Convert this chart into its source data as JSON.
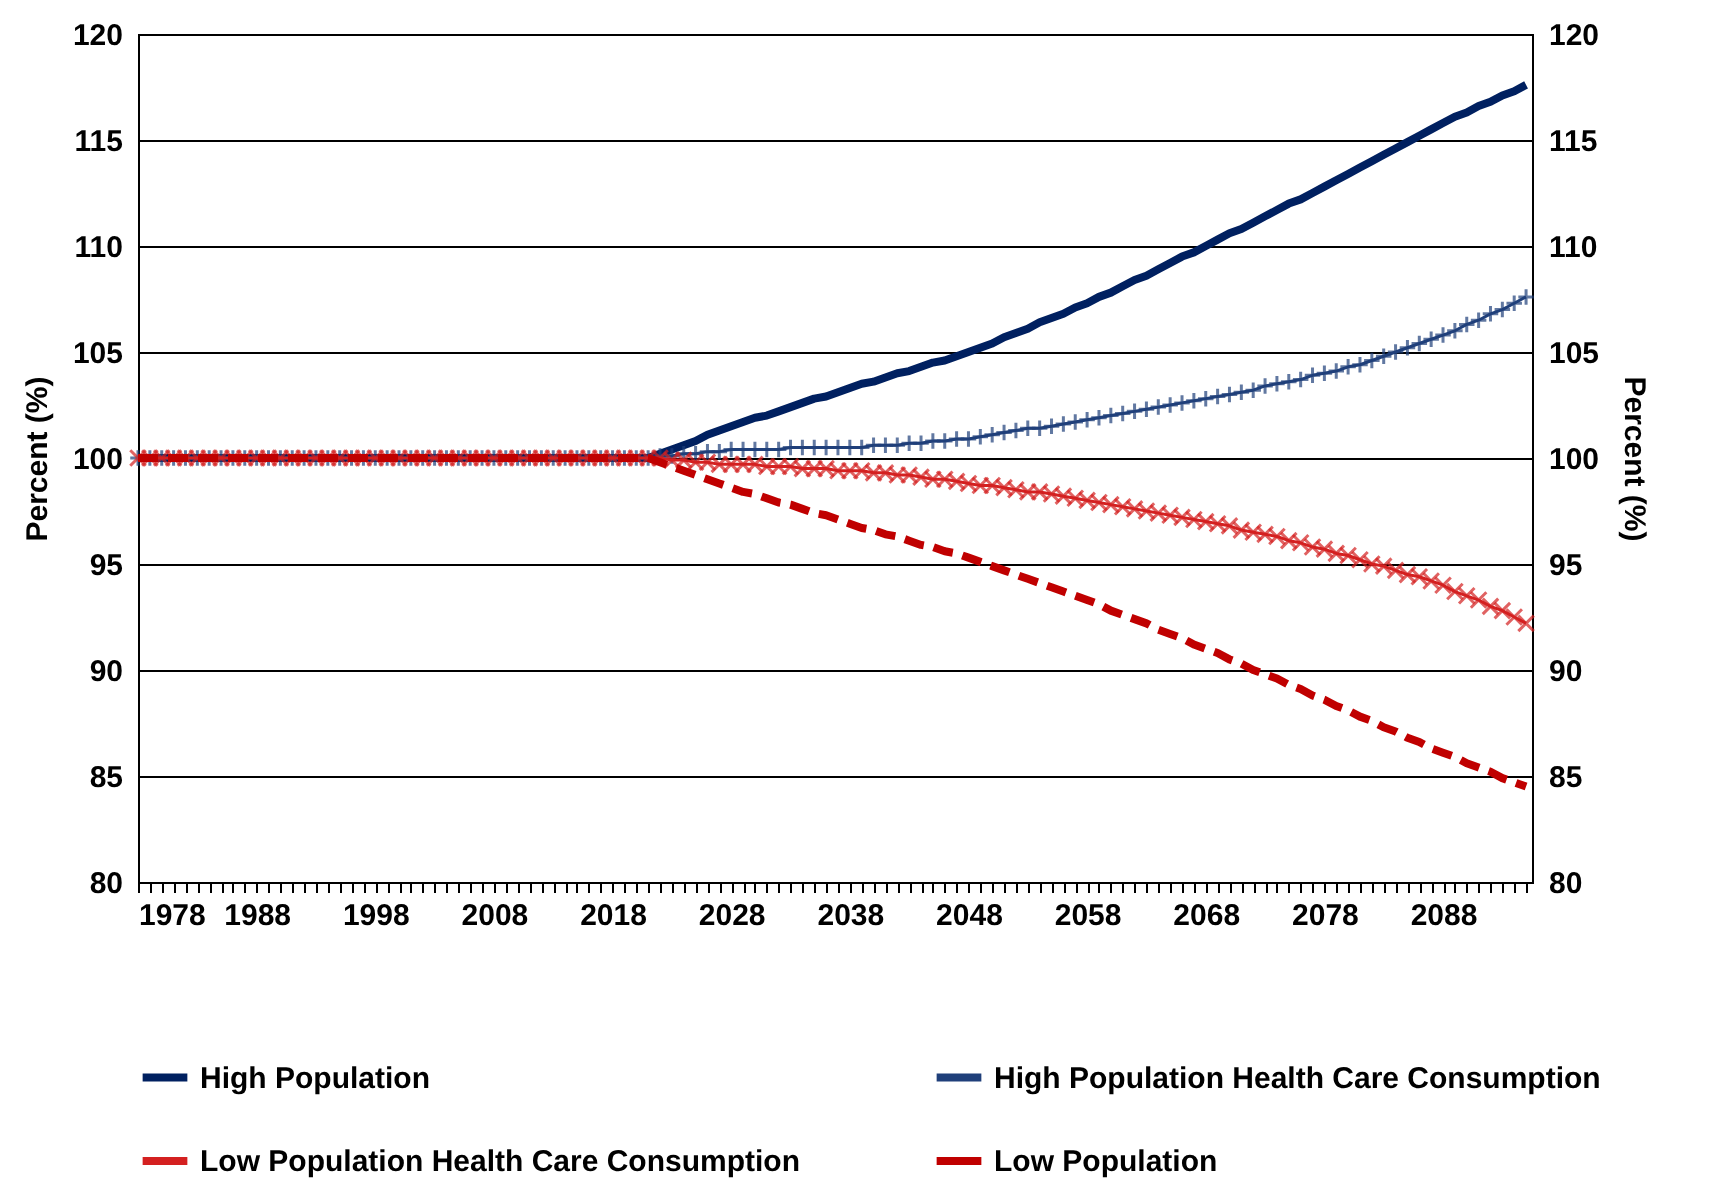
{
  "chart_data": {
    "type": "line",
    "ylabel": "Percent (%)",
    "y2label": "Percent (%)",
    "x": [
      1978,
      1979,
      1980,
      1981,
      1982,
      1983,
      1984,
      1985,
      1986,
      1987,
      1988,
      1989,
      1990,
      1991,
      1992,
      1993,
      1994,
      1995,
      1996,
      1997,
      1998,
      1999,
      2000,
      2001,
      2002,
      2003,
      2004,
      2005,
      2006,
      2007,
      2008,
      2009,
      2010,
      2011,
      2012,
      2013,
      2014,
      2015,
      2016,
      2017,
      2018,
      2019,
      2020,
      2021,
      2022,
      2023,
      2024,
      2025,
      2026,
      2027,
      2028,
      2029,
      2030,
      2031,
      2032,
      2033,
      2034,
      2035,
      2036,
      2037,
      2038,
      2039,
      2040,
      2041,
      2042,
      2043,
      2044,
      2045,
      2046,
      2047,
      2048,
      2049,
      2050,
      2051,
      2052,
      2053,
      2054,
      2055,
      2056,
      2057,
      2058,
      2059,
      2060,
      2061,
      2062,
      2063,
      2064,
      2065,
      2066,
      2067,
      2068,
      2069,
      2070,
      2071,
      2072,
      2073,
      2074,
      2075,
      2076,
      2077,
      2078,
      2079,
      2080,
      2081,
      2082,
      2083,
      2084,
      2085,
      2086,
      2087,
      2088,
      2089,
      2090,
      2091,
      2092,
      2093,
      2094,
      2095
    ],
    "series": [
      {
        "name": "High Population",
        "color": "#002060",
        "marker": "none",
        "line_style": "solid",
        "values": [
          100,
          100,
          100,
          100,
          100,
          100,
          100,
          100,
          100,
          100,
          100,
          100,
          100,
          100,
          100,
          100,
          100,
          100,
          100,
          100,
          100,
          100,
          100,
          100,
          100,
          100,
          100,
          100,
          100,
          100,
          100,
          100,
          100,
          100,
          100,
          100,
          100,
          100,
          100,
          100,
          100,
          100,
          100,
          100,
          100.2,
          100.4,
          100.6,
          100.8,
          101.1,
          101.3,
          101.5,
          101.7,
          101.9,
          102.0,
          102.2,
          102.4,
          102.6,
          102.8,
          102.9,
          103.1,
          103.3,
          103.5,
          103.6,
          103.8,
          104.0,
          104.1,
          104.3,
          104.5,
          104.6,
          104.8,
          105.0,
          105.2,
          105.4,
          105.7,
          105.9,
          106.1,
          106.4,
          106.6,
          106.8,
          107.1,
          107.3,
          107.6,
          107.8,
          108.1,
          108.4,
          108.6,
          108.9,
          109.2,
          109.5,
          109.7,
          110.0,
          110.3,
          110.6,
          110.8,
          111.1,
          111.4,
          111.7,
          112.0,
          112.2,
          112.5,
          112.8,
          113.1,
          113.4,
          113.7,
          114.0,
          114.3,
          114.6,
          114.9,
          115.2,
          115.5,
          115.8,
          116.1,
          116.3,
          116.6,
          116.8,
          117.1,
          117.3,
          117.6
        ]
      },
      {
        "name": "High Population Health Care Consumption",
        "color": "#1f3f7a",
        "marker": "cross",
        "line_style": "solid",
        "values": [
          100,
          100,
          100,
          100,
          100,
          100,
          100,
          100,
          100,
          100,
          100,
          100,
          100,
          100,
          100,
          100,
          100,
          100,
          100,
          100,
          100,
          100,
          100,
          100,
          100,
          100,
          100,
          100,
          100,
          100,
          100,
          100,
          100,
          100,
          100,
          100,
          100,
          100,
          100,
          100,
          100,
          100,
          100,
          100,
          100.1,
          100.1,
          100.2,
          100.2,
          100.3,
          100.3,
          100.4,
          100.4,
          100.4,
          100.4,
          100.4,
          100.5,
          100.5,
          100.5,
          100.5,
          100.5,
          100.5,
          100.5,
          100.6,
          100.6,
          100.6,
          100.7,
          100.7,
          100.8,
          100.8,
          100.9,
          100.9,
          101.0,
          101.1,
          101.2,
          101.3,
          101.4,
          101.4,
          101.5,
          101.6,
          101.7,
          101.8,
          101.9,
          102.0,
          102.1,
          102.2,
          102.3,
          102.4,
          102.5,
          102.6,
          102.7,
          102.8,
          102.9,
          103.0,
          103.1,
          103.2,
          103.4,
          103.5,
          103.6,
          103.7,
          103.9,
          104.0,
          104.1,
          104.3,
          104.4,
          104.6,
          104.8,
          105.0,
          105.2,
          105.4,
          105.6,
          105.8,
          106.0,
          106.3,
          106.5,
          106.8,
          107.0,
          107.3,
          107.6
        ]
      },
      {
        "name": "Low Population Health Care Consumption",
        "color": "#d42020",
        "marker": "x",
        "line_style": "solid",
        "values": [
          100,
          100,
          100,
          100,
          100,
          100,
          100,
          100,
          100,
          100,
          100,
          100,
          100,
          100,
          100,
          100,
          100,
          100,
          100,
          100,
          100,
          100,
          100,
          100,
          100,
          100,
          100,
          100,
          100,
          100,
          100,
          100,
          100,
          100,
          100,
          100,
          100,
          100,
          100,
          100,
          100,
          100,
          100,
          100,
          100.0,
          99.9,
          99.9,
          99.8,
          99.8,
          99.7,
          99.7,
          99.7,
          99.7,
          99.6,
          99.6,
          99.6,
          99.5,
          99.5,
          99.5,
          99.4,
          99.4,
          99.4,
          99.3,
          99.3,
          99.2,
          99.2,
          99.1,
          99.0,
          99.0,
          98.9,
          98.8,
          98.7,
          98.7,
          98.6,
          98.5,
          98.4,
          98.4,
          98.3,
          98.2,
          98.1,
          98.0,
          97.9,
          97.8,
          97.7,
          97.6,
          97.5,
          97.4,
          97.3,
          97.2,
          97.1,
          97.0,
          96.9,
          96.8,
          96.6,
          96.5,
          96.4,
          96.3,
          96.1,
          96.0,
          95.8,
          95.7,
          95.5,
          95.4,
          95.2,
          95.0,
          94.9,
          94.7,
          94.5,
          94.4,
          94.2,
          94.0,
          93.7,
          93.5,
          93.3,
          93.0,
          92.8,
          92.5,
          92.2
        ]
      },
      {
        "name": "Low Population",
        "color": "#c00000",
        "marker": "none",
        "line_style": "dashed",
        "values": [
          100,
          100,
          100,
          100,
          100,
          100,
          100,
          100,
          100,
          100,
          100,
          100,
          100,
          100,
          100,
          100,
          100,
          100,
          100,
          100,
          100,
          100,
          100,
          100,
          100,
          100,
          100,
          100,
          100,
          100,
          100,
          100,
          100,
          100,
          100,
          100,
          100,
          100,
          100,
          100,
          100,
          100,
          100,
          100,
          99.8,
          99.6,
          99.4,
          99.2,
          99.0,
          98.8,
          98.6,
          98.4,
          98.3,
          98.1,
          97.9,
          97.8,
          97.6,
          97.4,
          97.3,
          97.1,
          96.9,
          96.7,
          96.6,
          96.4,
          96.3,
          96.1,
          95.9,
          95.8,
          95.6,
          95.5,
          95.3,
          95.1,
          94.9,
          94.7,
          94.5,
          94.3,
          94.1,
          93.9,
          93.7,
          93.5,
          93.3,
          93.1,
          92.8,
          92.6,
          92.4,
          92.2,
          91.9,
          91.7,
          91.5,
          91.2,
          91.0,
          90.8,
          90.5,
          90.3,
          90.0,
          89.8,
          89.6,
          89.3,
          89.1,
          88.8,
          88.6,
          88.3,
          88.1,
          87.8,
          87.6,
          87.3,
          87.1,
          86.8,
          86.6,
          86.3,
          86.1,
          85.9,
          85.6,
          85.4,
          85.2,
          84.9,
          84.7,
          84.5
        ]
      }
    ],
    "xlim": [
      1978,
      2095.5
    ],
    "xticks": [
      1978,
      {
        "value": 1979,
        "label": null
      },
      {
        "value": 1980,
        "label": null
      },
      {
        "value": 1981,
        "label": null
      },
      {
        "value": 1982,
        "label": null
      },
      {
        "value": 1983,
        "label": null
      },
      {
        "value": 1984,
        "label": null
      },
      {
        "value": 1985,
        "label": null
      },
      {
        "value": 1986,
        "label": null
      },
      {
        "value": 1987,
        "label": null
      },
      1988,
      {
        "value": 1989,
        "label": null
      },
      {
        "value": 1990,
        "label": null
      },
      {
        "value": 1991,
        "label": null
      },
      {
        "value": 1992,
        "label": null
      },
      {
        "value": 1993,
        "label": null
      },
      {
        "value": 1994,
        "label": null
      },
      {
        "value": 1995,
        "label": null
      },
      {
        "value": 1996,
        "label": null
      },
      {
        "value": 1997,
        "label": null
      },
      1998,
      {
        "value": 1999,
        "label": null
      },
      {
        "value": 2000,
        "label": null
      },
      {
        "value": 2001,
        "label": null
      },
      {
        "value": 2002,
        "label": null
      },
      {
        "value": 2003,
        "label": null
      },
      {
        "value": 2004,
        "label": null
      },
      {
        "value": 2005,
        "label": null
      },
      {
        "value": 2006,
        "label": null
      },
      {
        "value": 2007,
        "label": null
      },
      2008,
      {
        "value": 2009,
        "label": null
      },
      {
        "value": 2010,
        "label": null
      },
      {
        "value": 2011,
        "label": null
      },
      {
        "value": 2012,
        "label": null
      },
      {
        "value": 2013,
        "label": null
      },
      {
        "value": 2014,
        "label": null
      },
      {
        "value": 2015,
        "label": null
      },
      {
        "value": 2016,
        "label": null
      },
      {
        "value": 2017,
        "label": null
      },
      2018,
      {
        "value": 2019,
        "label": null
      },
      {
        "value": 2020,
        "label": null
      },
      {
        "value": 2021,
        "label": null
      },
      {
        "value": 2022,
        "label": null
      },
      {
        "value": 2023,
        "label": null
      },
      {
        "value": 2024,
        "label": null
      },
      {
        "value": 2025,
        "label": null
      },
      {
        "value": 2026,
        "label": null
      },
      {
        "value": 2027,
        "label": null
      },
      2028,
      {
        "value": 2029,
        "label": null
      },
      {
        "value": 2030,
        "label": null
      },
      {
        "value": 2031,
        "label": null
      },
      {
        "value": 2032,
        "label": null
      },
      {
        "value": 2033,
        "label": null
      },
      {
        "value": 2034,
        "label": null
      },
      {
        "value": 2035,
        "label": null
      },
      {
        "value": 2036,
        "label": null
      },
      {
        "value": 2037,
        "label": null
      },
      2038,
      {
        "value": 2039,
        "label": null
      },
      {
        "value": 2040,
        "label": null
      },
      {
        "value": 2041,
        "label": null
      },
      {
        "value": 2042,
        "label": null
      },
      {
        "value": 2043,
        "label": null
      },
      {
        "value": 2044,
        "label": null
      },
      {
        "value": 2045,
        "label": null
      },
      {
        "value": 2046,
        "label": null
      },
      {
        "value": 2047,
        "label": null
      },
      2048,
      {
        "value": 2049,
        "label": null
      },
      {
        "value": 2050,
        "label": null
      },
      {
        "value": 2051,
        "label": null
      },
      {
        "value": 2052,
        "label": null
      },
      {
        "value": 2053,
        "label": null
      },
      {
        "value": 2054,
        "label": null
      },
      {
        "value": 2055,
        "label": null
      },
      {
        "value": 2056,
        "label": null
      },
      {
        "value": 2057,
        "label": null
      },
      2058,
      {
        "value": 2059,
        "label": null
      },
      {
        "value": 2060,
        "label": null
      },
      {
        "value": 2061,
        "label": null
      },
      {
        "value": 2062,
        "label": null
      },
      {
        "value": 2063,
        "label": null
      },
      {
        "value": 2064,
        "label": null
      },
      {
        "value": 2065,
        "label": null
      },
      {
        "value": 2066,
        "label": null
      },
      {
        "value": 2067,
        "label": null
      },
      2068,
      {
        "value": 2069,
        "label": null
      },
      {
        "value": 2070,
        "label": null
      },
      {
        "value": 2071,
        "label": null
      },
      {
        "value": 2072,
        "label": null
      },
      {
        "value": 2073,
        "label": null
      },
      {
        "value": 2074,
        "label": null
      },
      {
        "value": 2075,
        "label": null
      },
      {
        "value": 2076,
        "label": null
      },
      {
        "value": 2077,
        "label": null
      },
      2078,
      {
        "value": 2079,
        "label": null
      },
      {
        "value": 2080,
        "label": null
      },
      {
        "value": 2081,
        "label": null
      },
      {
        "value": 2082,
        "label": null
      },
      {
        "value": 2083,
        "label": null
      },
      {
        "value": 2084,
        "label": null
      },
      {
        "value": 2085,
        "label": null
      },
      {
        "value": 2086,
        "label": null
      },
      {
        "value": 2087,
        "label": null
      },
      2088,
      {
        "value": 2089,
        "label": null
      },
      {
        "value": 2090,
        "label": null
      },
      {
        "value": 2091,
        "label": null
      },
      {
        "value": 2092,
        "label": null
      },
      {
        "value": 2093,
        "label": null
      },
      {
        "value": 2094,
        "label": null
      },
      {
        "value": 2095,
        "label": null
      }
    ],
    "ylim": [
      80,
      120
    ],
    "yticks": [
      80,
      85,
      90,
      95,
      100,
      105,
      110,
      115,
      120
    ],
    "y2lim": [
      80,
      120
    ],
    "y2ticks": [
      80,
      85,
      90,
      95,
      100,
      105,
      110,
      115,
      120
    ],
    "grid": "y",
    "legend": "bottom"
  }
}
